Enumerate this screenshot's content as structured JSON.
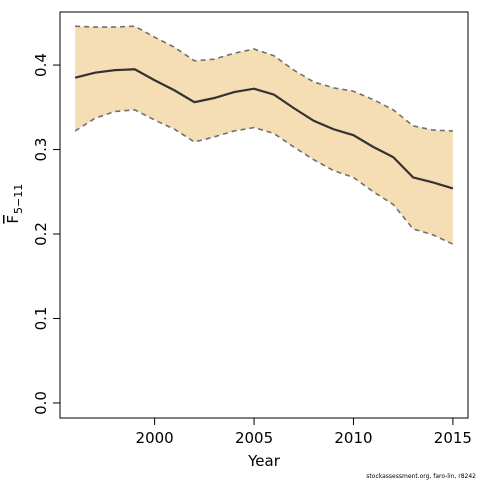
{
  "chart_data": {
    "type": "line",
    "xlabel": "Year",
    "ylabel": "F",
    "ylabel_subscript": "5−11",
    "footer": "stockassessment.org, faro-lin, r8242",
    "x": [
      1996,
      1997,
      1998,
      1999,
      2000,
      2001,
      2002,
      2003,
      2004,
      2005,
      2006,
      2007,
      2008,
      2009,
      2010,
      2011,
      2012,
      2013,
      2014,
      2015
    ],
    "values": [
      0.385,
      0.391,
      0.394,
      0.395,
      0.382,
      0.37,
      0.356,
      0.361,
      0.368,
      0.372,
      0.365,
      0.349,
      0.334,
      0.324,
      0.317,
      0.303,
      0.291,
      0.267,
      0.261,
      0.254
    ],
    "band": {
      "upper": [
        0.446,
        0.445,
        0.445,
        0.446,
        0.433,
        0.421,
        0.405,
        0.407,
        0.414,
        0.419,
        0.411,
        0.394,
        0.38,
        0.373,
        0.369,
        0.359,
        0.347,
        0.328,
        0.323,
        0.322
      ],
      "lower": [
        0.322,
        0.337,
        0.345,
        0.347,
        0.335,
        0.324,
        0.309,
        0.315,
        0.322,
        0.326,
        0.319,
        0.303,
        0.288,
        0.275,
        0.267,
        0.25,
        0.235,
        0.206,
        0.199,
        0.188
      ],
      "color": "#f5deb3",
      "edge_color": "#707070"
    },
    "color": "#333333",
    "xlim": [
      1995.24,
      2015.76
    ],
    "ylim": [
      -0.0178,
      0.4628
    ],
    "xticks": [
      2000,
      2005,
      2010,
      2015
    ],
    "yticks": [
      {
        "value": 0,
        "label": "0.0"
      },
      0.1,
      0.2,
      0.3,
      0.4
    ]
  }
}
